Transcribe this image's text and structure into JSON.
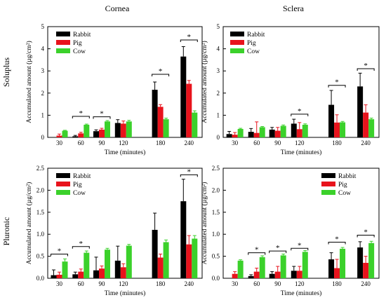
{
  "figure": {
    "column_titles": [
      "Cornea",
      "Sclera"
    ],
    "row_labels": [
      "Soluplus",
      "Pluronic"
    ],
    "colors": {
      "Rabbit": "#000000",
      "Pig": "#e8131c",
      "Cow": "#3bd12b",
      "frame": "#000000"
    }
  },
  "chart_data": [
    {
      "type": "bar",
      "panel": "Soluplus - Cornea",
      "title": "Cornea",
      "xlabel": "Time (minutes)",
      "ylabel": "Accumulated amount (µg/cm²)",
      "ylim": [
        0,
        5
      ],
      "yticks": [
        0,
        1,
        2,
        3,
        4,
        5
      ],
      "yticks_text": [
        "0",
        "1",
        "2",
        "3",
        "4",
        "5"
      ],
      "categories": [
        "30",
        "60",
        "90",
        "120",
        "180",
        "240"
      ],
      "legend": "top-left",
      "series": [
        {
          "name": "Rabbit",
          "values": [
            0.0,
            0.05,
            0.28,
            0.65,
            2.15,
            3.65
          ],
          "errors": [
            0.0,
            0.04,
            0.06,
            0.15,
            0.35,
            0.45
          ]
        },
        {
          "name": "Pig",
          "values": [
            0.08,
            0.18,
            0.35,
            0.62,
            1.38,
            2.42
          ],
          "errors": [
            0.07,
            0.05,
            0.06,
            0.12,
            0.1,
            0.15
          ]
        },
        {
          "name": "Cow",
          "values": [
            0.3,
            0.57,
            0.72,
            0.72,
            0.82,
            1.12
          ],
          "errors": [
            0.02,
            0.03,
            0.04,
            0.05,
            0.05,
            0.08
          ]
        }
      ],
      "significance": [
        {
          "category_index": 1,
          "label": "*",
          "bracket_y": 0.95
        },
        {
          "category_index": 2,
          "label": "*",
          "bracket_y": 0.93
        },
        {
          "category_index": 4,
          "label": "*",
          "bracket_y": 2.85
        },
        {
          "category_index": 5,
          "label": "*",
          "bracket_y": 4.4
        }
      ]
    },
    {
      "type": "bar",
      "panel": "Soluplus - Sclera",
      "title": "Sclera",
      "xlabel": "Time (minutes)",
      "ylabel": "Accumulated amount (µg/cm²)",
      "ylim": [
        0,
        5
      ],
      "yticks": [
        0,
        1,
        2,
        3,
        4,
        5
      ],
      "yticks_text": [
        "0",
        "1",
        "2",
        "3",
        "4",
        "5"
      ],
      "categories": [
        "30",
        "60",
        "90",
        "120",
        "180",
        "240"
      ],
      "legend": "top-left",
      "series": [
        {
          "name": "Rabbit",
          "values": [
            0.15,
            0.25,
            0.35,
            0.62,
            1.47,
            2.3
          ],
          "errors": [
            0.12,
            0.15,
            0.1,
            0.2,
            0.65,
            0.6
          ]
        },
        {
          "name": "Pig",
          "values": [
            0.12,
            0.2,
            0.3,
            0.37,
            0.67,
            1.12
          ],
          "errors": [
            0.1,
            0.5,
            0.15,
            0.3,
            0.35,
            0.35
          ]
        },
        {
          "name": "Cow",
          "values": [
            0.38,
            0.46,
            0.52,
            0.57,
            0.68,
            0.82
          ],
          "errors": [
            0.03,
            0.03,
            0.04,
            0.04,
            0.04,
            0.05
          ]
        }
      ],
      "significance": [
        {
          "category_index": 3,
          "label": "*",
          "bracket_y": 1.05
        },
        {
          "category_index": 4,
          "label": "*",
          "bracket_y": 2.35
        },
        {
          "category_index": 5,
          "label": "*",
          "bracket_y": 3.1
        }
      ]
    },
    {
      "type": "bar",
      "panel": "Pluronic - Cornea",
      "xlabel": "Time (minutes)",
      "ylabel": "Accumulated amount (µg/cm²)",
      "ylim": [
        0,
        2.5
      ],
      "yticks": [
        0,
        0.5,
        1.0,
        1.5,
        2.0,
        2.5
      ],
      "yticks_text": [
        "0.0",
        "0.5",
        "1.0",
        "1.5",
        "2.0",
        "2.5"
      ],
      "categories": [
        "30",
        "60",
        "90",
        "120",
        "180",
        "240"
      ],
      "legend": "top-left",
      "series": [
        {
          "name": "Rabbit",
          "values": [
            0.07,
            0.09,
            0.18,
            0.4,
            1.1,
            1.75
          ],
          "errors": [
            0.12,
            0.05,
            0.3,
            0.33,
            0.38,
            0.5
          ]
        },
        {
          "name": "Pig",
          "values": [
            0.08,
            0.15,
            0.22,
            0.25,
            0.47,
            0.77
          ],
          "errors": [
            0.06,
            0.06,
            0.06,
            0.08,
            0.08,
            0.2
          ]
        },
        {
          "name": "Cow",
          "values": [
            0.38,
            0.58,
            0.65,
            0.74,
            0.82,
            0.9
          ],
          "errors": [
            0.06,
            0.04,
            0.03,
            0.03,
            0.05,
            0.07
          ]
        }
      ],
      "significance": [
        {
          "category_index": 0,
          "label": "*",
          "bracket_y": 0.55
        },
        {
          "category_index": 1,
          "label": "*",
          "bracket_y": 0.72
        },
        {
          "category_index": 5,
          "label": "*",
          "bracket_y": 2.35
        }
      ]
    },
    {
      "type": "bar",
      "panel": "Pluronic - Sclera",
      "xlabel": "Time (minutes)",
      "ylabel": "Accumulated amount (µg/cm²)",
      "ylim": [
        0,
        2.5
      ],
      "yticks": [
        0,
        0.5,
        1.0,
        1.5,
        2.0,
        2.5
      ],
      "yticks_text": [
        "0.0",
        "0.5",
        "1.0",
        "1.5",
        "2.0",
        "2.5"
      ],
      "categories": [
        "30",
        "60",
        "90",
        "120",
        "180",
        "240"
      ],
      "legend": "top-right",
      "series": [
        {
          "name": "Rabbit",
          "values": [
            0.0,
            0.05,
            0.1,
            0.17,
            0.43,
            0.7
          ],
          "errors": [
            0.0,
            0.03,
            0.05,
            0.1,
            0.15,
            0.13
          ]
        },
        {
          "name": "Pig",
          "values": [
            0.1,
            0.15,
            0.15,
            0.17,
            0.23,
            0.35
          ],
          "errors": [
            0.05,
            0.08,
            0.12,
            0.1,
            0.2,
            0.15
          ]
        },
        {
          "name": "Cow",
          "values": [
            0.4,
            0.48,
            0.52,
            0.6,
            0.67,
            0.8
          ],
          "errors": [
            0.02,
            0.03,
            0.03,
            0.03,
            0.03,
            0.04
          ]
        }
      ],
      "significance": [
        {
          "category_index": 1,
          "label": "*",
          "bracket_y": 0.58
        },
        {
          "category_index": 2,
          "label": "*",
          "bracket_y": 0.62
        },
        {
          "category_index": 3,
          "label": "*",
          "bracket_y": 0.68
        },
        {
          "category_index": 4,
          "label": "*",
          "bracket_y": 0.82
        },
        {
          "category_index": 5,
          "label": "*",
          "bracket_y": 0.98
        }
      ]
    }
  ]
}
